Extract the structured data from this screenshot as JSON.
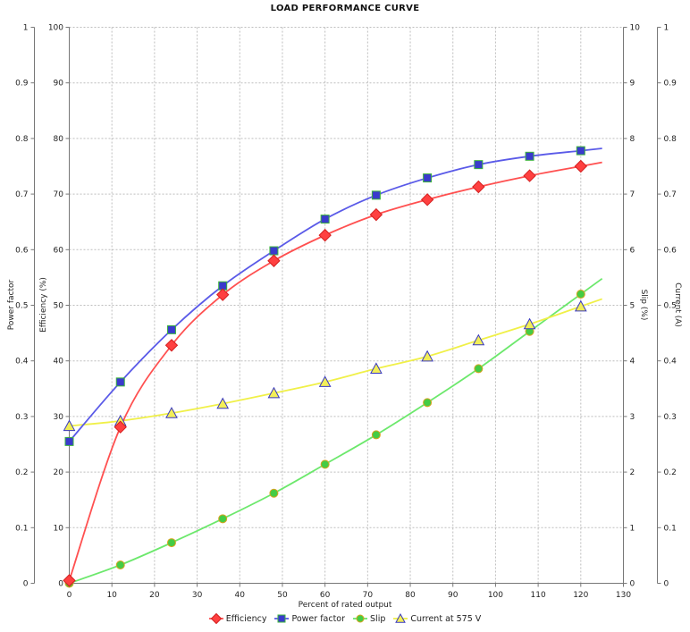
{
  "title": "LOAD PERFORMANCE CURVE",
  "chart_data": {
    "type": "line",
    "title": "LOAD PERFORMANCE CURVE",
    "grid": true,
    "legend_position": "bottom",
    "x_axis": {
      "label": "Percent of rated output",
      "min": 0,
      "max": 130,
      "tick_step": 10
    },
    "y_axes": [
      {
        "id": "power_factor",
        "label": "Power factor",
        "position": "left-outer",
        "min": 0,
        "max": 1,
        "tick_step": 0.1
      },
      {
        "id": "efficiency",
        "label": "Efficiency (%)",
        "position": "left-inner",
        "min": 0,
        "max": 100,
        "tick_step": 10
      },
      {
        "id": "slip",
        "label": "Slip (%)",
        "position": "right-inner",
        "min": 0,
        "max": 10,
        "tick_step": 1
      },
      {
        "id": "current",
        "label": "Current (A)",
        "position": "right-outer",
        "min": 0,
        "max": 1,
        "tick_step": 0.1
      }
    ],
    "x": [
      0,
      12,
      24,
      36,
      48,
      60,
      72,
      84,
      96,
      108,
      120
    ],
    "series": [
      {
        "name": "Efficiency",
        "slug": "efficiency",
        "axis": "efficiency",
        "marker": "diamond",
        "line_color": "#ff5050",
        "marker_fill": "#ff4040",
        "marker_edge": "#d42020",
        "values": [
          0.5,
          28.1,
          42.8,
          51.9,
          58.0,
          62.6,
          66.3,
          69.0,
          71.3,
          73.3,
          75.0
        ]
      },
      {
        "name": "Power factor",
        "slug": "power-factor",
        "axis": "power_factor",
        "marker": "square",
        "line_color": "#5a5ae8",
        "marker_fill": "#3a3acc",
        "marker_edge": "#3cb43c",
        "values": [
          0.255,
          0.362,
          0.456,
          0.535,
          0.598,
          0.655,
          0.698,
          0.729,
          0.753,
          0.768,
          0.778
        ]
      },
      {
        "name": "Slip",
        "slug": "slip",
        "axis": "slip",
        "marker": "circle",
        "line_color": "#6ce86c",
        "marker_fill": "#44cc44",
        "marker_edge": "#d8a420",
        "values": [
          0.0,
          0.33,
          0.73,
          1.16,
          1.62,
          2.14,
          2.67,
          3.25,
          3.86,
          4.53,
          5.2
        ]
      },
      {
        "name": "Current at 575 V",
        "slug": "current",
        "axis": "current",
        "marker": "triangle",
        "line_color": "#f0f048",
        "marker_fill": "#f2ee58",
        "marker_edge": "#3838c0",
        "values": [
          0.283,
          0.292,
          0.306,
          0.323,
          0.342,
          0.362,
          0.386,
          0.408,
          0.437,
          0.466,
          0.498
        ]
      }
    ]
  }
}
